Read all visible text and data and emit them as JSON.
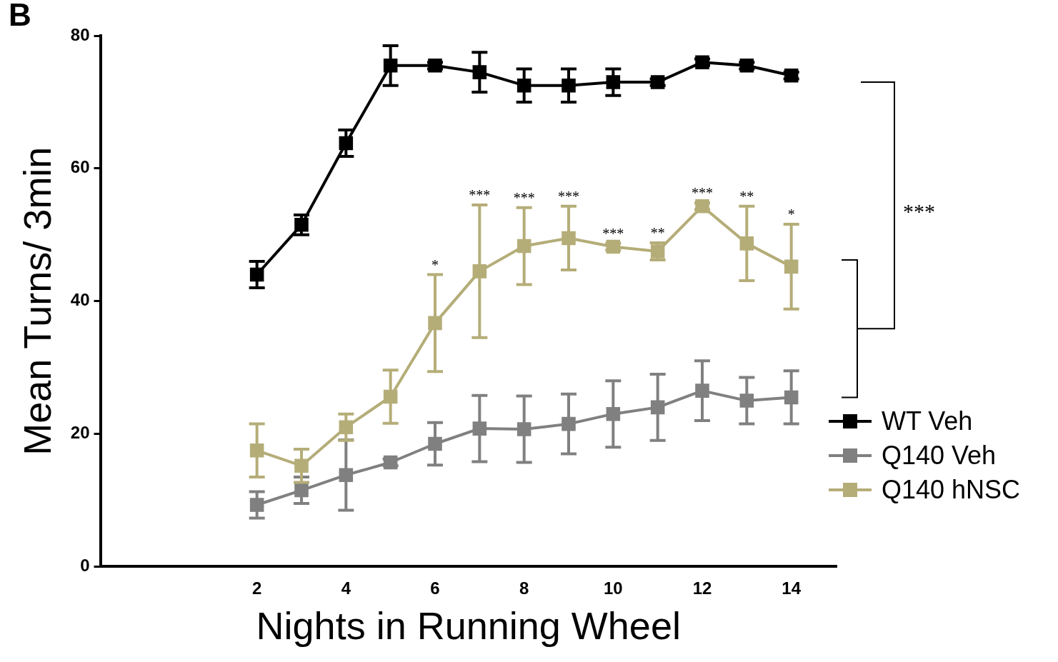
{
  "chart_data": {
    "type": "line",
    "xlabel": "Nights in Running Wheel",
    "ylabel": "Mean Turns/ 3min",
    "x": [
      2,
      3,
      4,
      5,
      6,
      7,
      8,
      9,
      10,
      11,
      12,
      13,
      14
    ],
    "series": [
      {
        "name": "WT Veh",
        "color": "#000000",
        "values": [
          44,
          51.5,
          63.8,
          75.5,
          75.5,
          74.5,
          72.5,
          72.5,
          73,
          73,
          76,
          75.5,
          74
        ],
        "errors": [
          2,
          1.5,
          2,
          3,
          0.5,
          3,
          2.5,
          2.5,
          2,
          0.5,
          0.5,
          0.5,
          0.5
        ]
      },
      {
        "name": "Q140 Veh",
        "color": "#808080",
        "values": [
          9.3,
          11.5,
          13.8,
          15.7,
          18.5,
          20.8,
          20.7,
          21.5,
          23,
          24,
          26.5,
          25,
          25.5
        ],
        "errors": [
          2,
          2,
          5.3,
          0.5,
          3.2,
          5,
          5,
          4.5,
          5,
          5,
          4.5,
          3.5,
          4
        ]
      },
      {
        "name": "Q140 hNSC",
        "color": "#b5ad78",
        "values": [
          17.5,
          15.2,
          21,
          25.6,
          36.7,
          44.5,
          48.3,
          49.5,
          48.2,
          47.5,
          54.3,
          48.7,
          45.2
        ],
        "errors": [
          4,
          2.5,
          2,
          4,
          7.3,
          10,
          5.8,
          4.8,
          0.5,
          1.3,
          0.5,
          5.6,
          6.4
        ]
      }
    ],
    "xlim": [
      -1.5,
      15
    ],
    "xticks": [
      2,
      4,
      6,
      8,
      10,
      12,
      14
    ],
    "ylim": [
      0,
      80
    ],
    "yticks": [
      0,
      20,
      40,
      60,
      80
    ],
    "grid": false,
    "legend": "bottom right",
    "marker": "square",
    "line_style": "solid",
    "annotations": [
      "B",
      "***",
      {
        "text": "*",
        "x": 6,
        "y": 44
      },
      {
        "text": "***",
        "x": 7,
        "y": 54.5
      },
      {
        "text": "***",
        "x": 8,
        "y": 54.1
      },
      {
        "text": "***",
        "x": 9,
        "y": 54.3
      },
      {
        "text": "***",
        "x": 10,
        "y": 48.7
      },
      {
        "text": "**",
        "x": 11,
        "y": 48.8
      },
      {
        "text": "***",
        "x": 12,
        "y": 54.8
      },
      {
        "text": "**",
        "x": 13,
        "y": 54.3
      },
      {
        "text": "*",
        "x": 14,
        "y": 51.6
      }
    ]
  }
}
